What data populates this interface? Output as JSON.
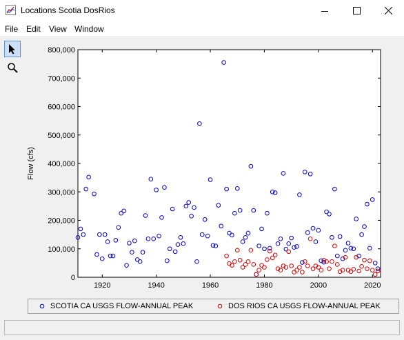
{
  "window": {
    "title": "Locations Scotia DosRios",
    "icon": "chart-icon",
    "controls": [
      "minimize",
      "maximize",
      "close"
    ]
  },
  "menu": [
    "File",
    "Edit",
    "View",
    "Window"
  ],
  "tools": [
    {
      "name": "pointer-icon",
      "active": true
    },
    {
      "name": "zoom-icon",
      "active": false
    }
  ],
  "chart_data": {
    "type": "scatter",
    "xlabel": "",
    "ylabel": "Flow (cfs)",
    "xlim": [
      1911,
      2023
    ],
    "ylim": [
      0,
      800000
    ],
    "x_ticks": [
      1920,
      1940,
      1960,
      1980,
      2000,
      2020
    ],
    "y_ticks": [
      0,
      100000,
      200000,
      300000,
      400000,
      500000,
      600000,
      700000,
      800000
    ],
    "y_tick_labels": [
      "0",
      "100,000",
      "200,000",
      "300,000",
      "400,000",
      "500,000",
      "600,000",
      "700,000",
      "800,000"
    ],
    "grid": false,
    "legend_position": "bottom",
    "series": [
      {
        "name": "SCOTIA CA USGS FLOW-ANNUAL PEAK",
        "color": "#0000cc",
        "marker": "circle",
        "points": [
          [
            1911,
            140000
          ],
          [
            1912,
            170000
          ],
          [
            1913,
            150000
          ],
          [
            1914,
            310000
          ],
          [
            1915,
            352000
          ],
          [
            1917,
            293000
          ],
          [
            1918,
            80000
          ],
          [
            1919,
            150000
          ],
          [
            1920,
            65000
          ],
          [
            1921,
            150000
          ],
          [
            1922,
            125000
          ],
          [
            1923,
            75000
          ],
          [
            1924,
            75000
          ],
          [
            1925,
            130000
          ],
          [
            1926,
            175000
          ],
          [
            1927,
            225000
          ],
          [
            1928,
            233000
          ],
          [
            1929,
            42000
          ],
          [
            1930,
            120000
          ],
          [
            1931,
            88000
          ],
          [
            1932,
            128000
          ],
          [
            1933,
            62000
          ],
          [
            1934,
            55000
          ],
          [
            1935,
            88000
          ],
          [
            1936,
            217000
          ],
          [
            1937,
            135000
          ],
          [
            1938,
            345000
          ],
          [
            1939,
            135000
          ],
          [
            1940,
            307000
          ],
          [
            1941,
            145000
          ],
          [
            1942,
            210000
          ],
          [
            1943,
            316000
          ],
          [
            1944,
            58000
          ],
          [
            1945,
            100000
          ],
          [
            1946,
            240000
          ],
          [
            1947,
            90000
          ],
          [
            1948,
            115000
          ],
          [
            1949,
            140000
          ],
          [
            1950,
            118000
          ],
          [
            1951,
            250000
          ],
          [
            1952,
            263000
          ],
          [
            1953,
            215000
          ],
          [
            1954,
            245000
          ],
          [
            1955,
            55000
          ],
          [
            1956,
            540000
          ],
          [
            1957,
            150000
          ],
          [
            1958,
            203000
          ],
          [
            1959,
            145000
          ],
          [
            1960,
            343000
          ],
          [
            1961,
            112000
          ],
          [
            1962,
            110000
          ],
          [
            1963,
            253000
          ],
          [
            1964,
            180000
          ],
          [
            1965,
            755000
          ],
          [
            1966,
            310000
          ],
          [
            1967,
            155000
          ],
          [
            1968,
            148000
          ],
          [
            1969,
            225000
          ],
          [
            1970,
            312000
          ],
          [
            1971,
            235000
          ],
          [
            1972,
            125000
          ],
          [
            1973,
            140000
          ],
          [
            1974,
            155000
          ],
          [
            1975,
            390000
          ],
          [
            1976,
            235000
          ],
          [
            1977,
            10000
          ],
          [
            1978,
            110000
          ],
          [
            1979,
            170000
          ],
          [
            1980,
            100000
          ],
          [
            1981,
            225000
          ],
          [
            1982,
            102000
          ],
          [
            1983,
            300000
          ],
          [
            1984,
            297000
          ],
          [
            1985,
            118000
          ],
          [
            1986,
            135000
          ],
          [
            1987,
            365000
          ],
          [
            1988,
            99000
          ],
          [
            1989,
            118000
          ],
          [
            1990,
            138000
          ],
          [
            1991,
            105000
          ],
          [
            1992,
            108000
          ],
          [
            1993,
            290000
          ],
          [
            1994,
            52000
          ],
          [
            1995,
            370000
          ],
          [
            1996,
            157000
          ],
          [
            1997,
            363000
          ],
          [
            1998,
            172000
          ],
          [
            1999,
            125000
          ],
          [
            2000,
            165000
          ],
          [
            2001,
            58000
          ],
          [
            2002,
            53000
          ],
          [
            2003,
            230000
          ],
          [
            2004,
            222000
          ],
          [
            2005,
            140000
          ],
          [
            2006,
            310000
          ],
          [
            2007,
            75000
          ],
          [
            2008,
            143000
          ],
          [
            2009,
            65000
          ],
          [
            2010,
            95000
          ],
          [
            2011,
            120000
          ],
          [
            2012,
            102000
          ],
          [
            2013,
            100000
          ],
          [
            2014,
            205000
          ],
          [
            2015,
            75000
          ],
          [
            2016,
            150000
          ],
          [
            2017,
            178000
          ],
          [
            2018,
            257000
          ],
          [
            2019,
            102000
          ],
          [
            2020,
            273000
          ],
          [
            2021,
            50000
          ],
          [
            2022,
            30000
          ]
        ]
      },
      {
        "name": "DOS RIOS CA USGS FLOW-ANNUAL PEAK",
        "color": "#d80000",
        "marker": "circle",
        "points": [
          [
            1966,
            75000
          ],
          [
            1967,
            48000
          ],
          [
            1968,
            42000
          ],
          [
            1969,
            55000
          ],
          [
            1970,
            95000
          ],
          [
            1971,
            60000
          ],
          [
            1972,
            35000
          ],
          [
            1973,
            45000
          ],
          [
            1974,
            55000
          ],
          [
            1975,
            95000
          ],
          [
            1976,
            45000
          ],
          [
            1977,
            10000
          ],
          [
            1978,
            25000
          ],
          [
            1979,
            42000
          ],
          [
            1980,
            35000
          ],
          [
            1981,
            62000
          ],
          [
            1982,
            92000
          ],
          [
            1983,
            68000
          ],
          [
            1984,
            78000
          ],
          [
            1985,
            30000
          ],
          [
            1986,
            25000
          ],
          [
            1987,
            40000
          ],
          [
            1988,
            35000
          ],
          [
            1989,
            90000
          ],
          [
            1990,
            40000
          ],
          [
            1991,
            18000
          ],
          [
            1992,
            25000
          ],
          [
            1993,
            35000
          ],
          [
            1994,
            18000
          ],
          [
            1995,
            55000
          ],
          [
            1996,
            40000
          ],
          [
            1997,
            135000
          ],
          [
            1998,
            30000
          ],
          [
            1999,
            40000
          ],
          [
            2000,
            35000
          ],
          [
            2001,
            25000
          ],
          [
            2002,
            60000
          ],
          [
            2003,
            55000
          ],
          [
            2004,
            30000
          ],
          [
            2005,
            55000
          ],
          [
            2006,
            110000
          ],
          [
            2007,
            45000
          ],
          [
            2008,
            20000
          ],
          [
            2009,
            25000
          ],
          [
            2010,
            70000
          ],
          [
            2011,
            25000
          ],
          [
            2012,
            20000
          ],
          [
            2013,
            28000
          ],
          [
            2014,
            70000
          ],
          [
            2015,
            22000
          ],
          [
            2016,
            38000
          ],
          [
            2017,
            60000
          ],
          [
            2018,
            30000
          ],
          [
            2019,
            58000
          ],
          [
            2020,
            25000
          ],
          [
            2021,
            10000
          ],
          [
            2022,
            22000
          ]
        ]
      }
    ]
  }
}
